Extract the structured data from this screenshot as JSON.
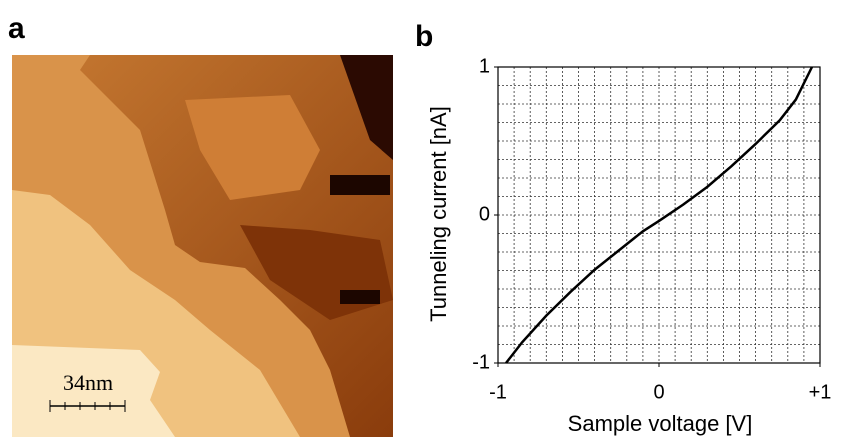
{
  "image_panel": {
    "label": "a",
    "scale_bar_label": "34nm"
  },
  "chart_data": {
    "type": "line",
    "panel_label": "b",
    "x_label": "Sample voltage [V]",
    "y_label": "Tunneling current [nA]",
    "x": [
      -0.95,
      -0.85,
      -0.7,
      -0.55,
      -0.4,
      -0.25,
      -0.1,
      0,
      0.15,
      0.3,
      0.45,
      0.6,
      0.75,
      0.85,
      0.95
    ],
    "series": [
      {
        "color": "#000000",
        "values": [
          -1,
          -0.86,
          -0.68,
          -0.52,
          -0.37,
          -0.24,
          -0.11,
          -0.04,
          0.07,
          0.19,
          0.33,
          0.48,
          0.64,
          0.78,
          1
        ]
      }
    ],
    "xlim": [
      -1,
      1
    ],
    "ylim": [
      -1,
      1
    ],
    "xticks": [
      -1,
      0,
      {
        "value": 1,
        "label": "+1"
      }
    ],
    "yticks": [
      -1,
      0,
      1
    ],
    "xgrid": [
      -0.9,
      -0.8,
      -0.7,
      -0.6,
      -0.5,
      -0.4,
      -0.3,
      -0.2,
      -0.1,
      0,
      0.1,
      0.2,
      0.3,
      0.4,
      0.5,
      0.6,
      0.7,
      0.8,
      0.9
    ],
    "ygrid": [
      -0.875,
      -0.75,
      -0.625,
      -0.5,
      -0.375,
      -0.25,
      -0.125,
      0,
      0.125,
      0.25,
      0.375,
      0.5,
      0.625,
      0.75,
      0.875
    ],
    "grid": true
  }
}
